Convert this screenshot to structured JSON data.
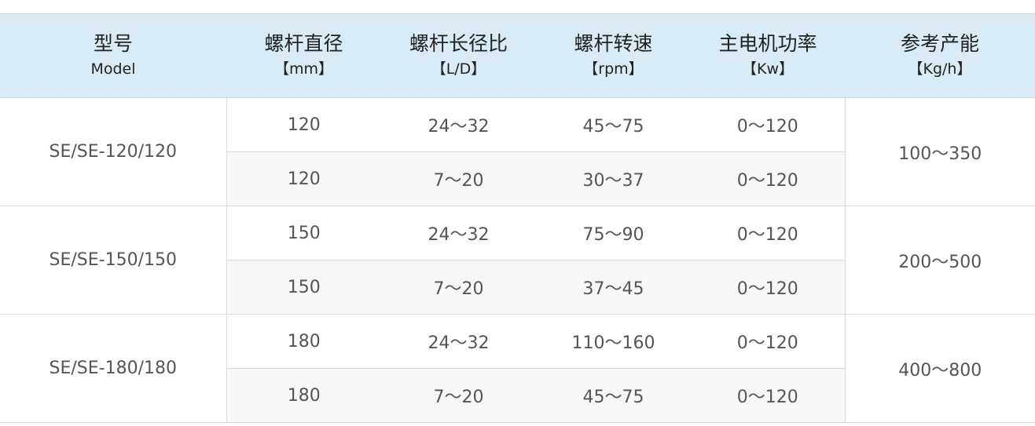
{
  "header": [
    {
      "cn": "型号",
      "en": "Model"
    },
    {
      "cn": "螺杆直径",
      "en": "【mm】"
    },
    {
      "cn": "螺杆长径比",
      "en": "【L/D】"
    },
    {
      "cn": "螺杆转速",
      "en": "【rpm】"
    },
    {
      "cn": "主电机功率",
      "en": "【Kw】"
    },
    {
      "cn": "参考产能",
      "en": "【Kg/h】"
    }
  ],
  "groups": [
    {
      "model": "SE/SE-120/120",
      "capacity": "100～350",
      "rows": [
        {
          "diameter": "120",
          "ld": "24～32",
          "speed": "45～75",
          "power": "0～120"
        },
        {
          "diameter": "120",
          "ld": "7～20",
          "speed": "30～37",
          "power": "0～120"
        }
      ]
    },
    {
      "model": "SE/SE-150/150",
      "capacity": "200～500",
      "rows": [
        {
          "diameter": "150",
          "ld": "24～32",
          "speed": "75～90",
          "power": "0～120"
        },
        {
          "diameter": "150",
          "ld": "7～20",
          "speed": "37～45",
          "power": "0～120"
        }
      ]
    },
    {
      "model": "SE/SE-180/180",
      "capacity": "400～800",
      "rows": [
        {
          "diameter": "180",
          "ld": "24～32",
          "speed": "110～160",
          "power": "0～120"
        },
        {
          "diameter": "180",
          "ld": "7～20",
          "speed": "45～75",
          "power": "0～120"
        }
      ]
    }
  ]
}
